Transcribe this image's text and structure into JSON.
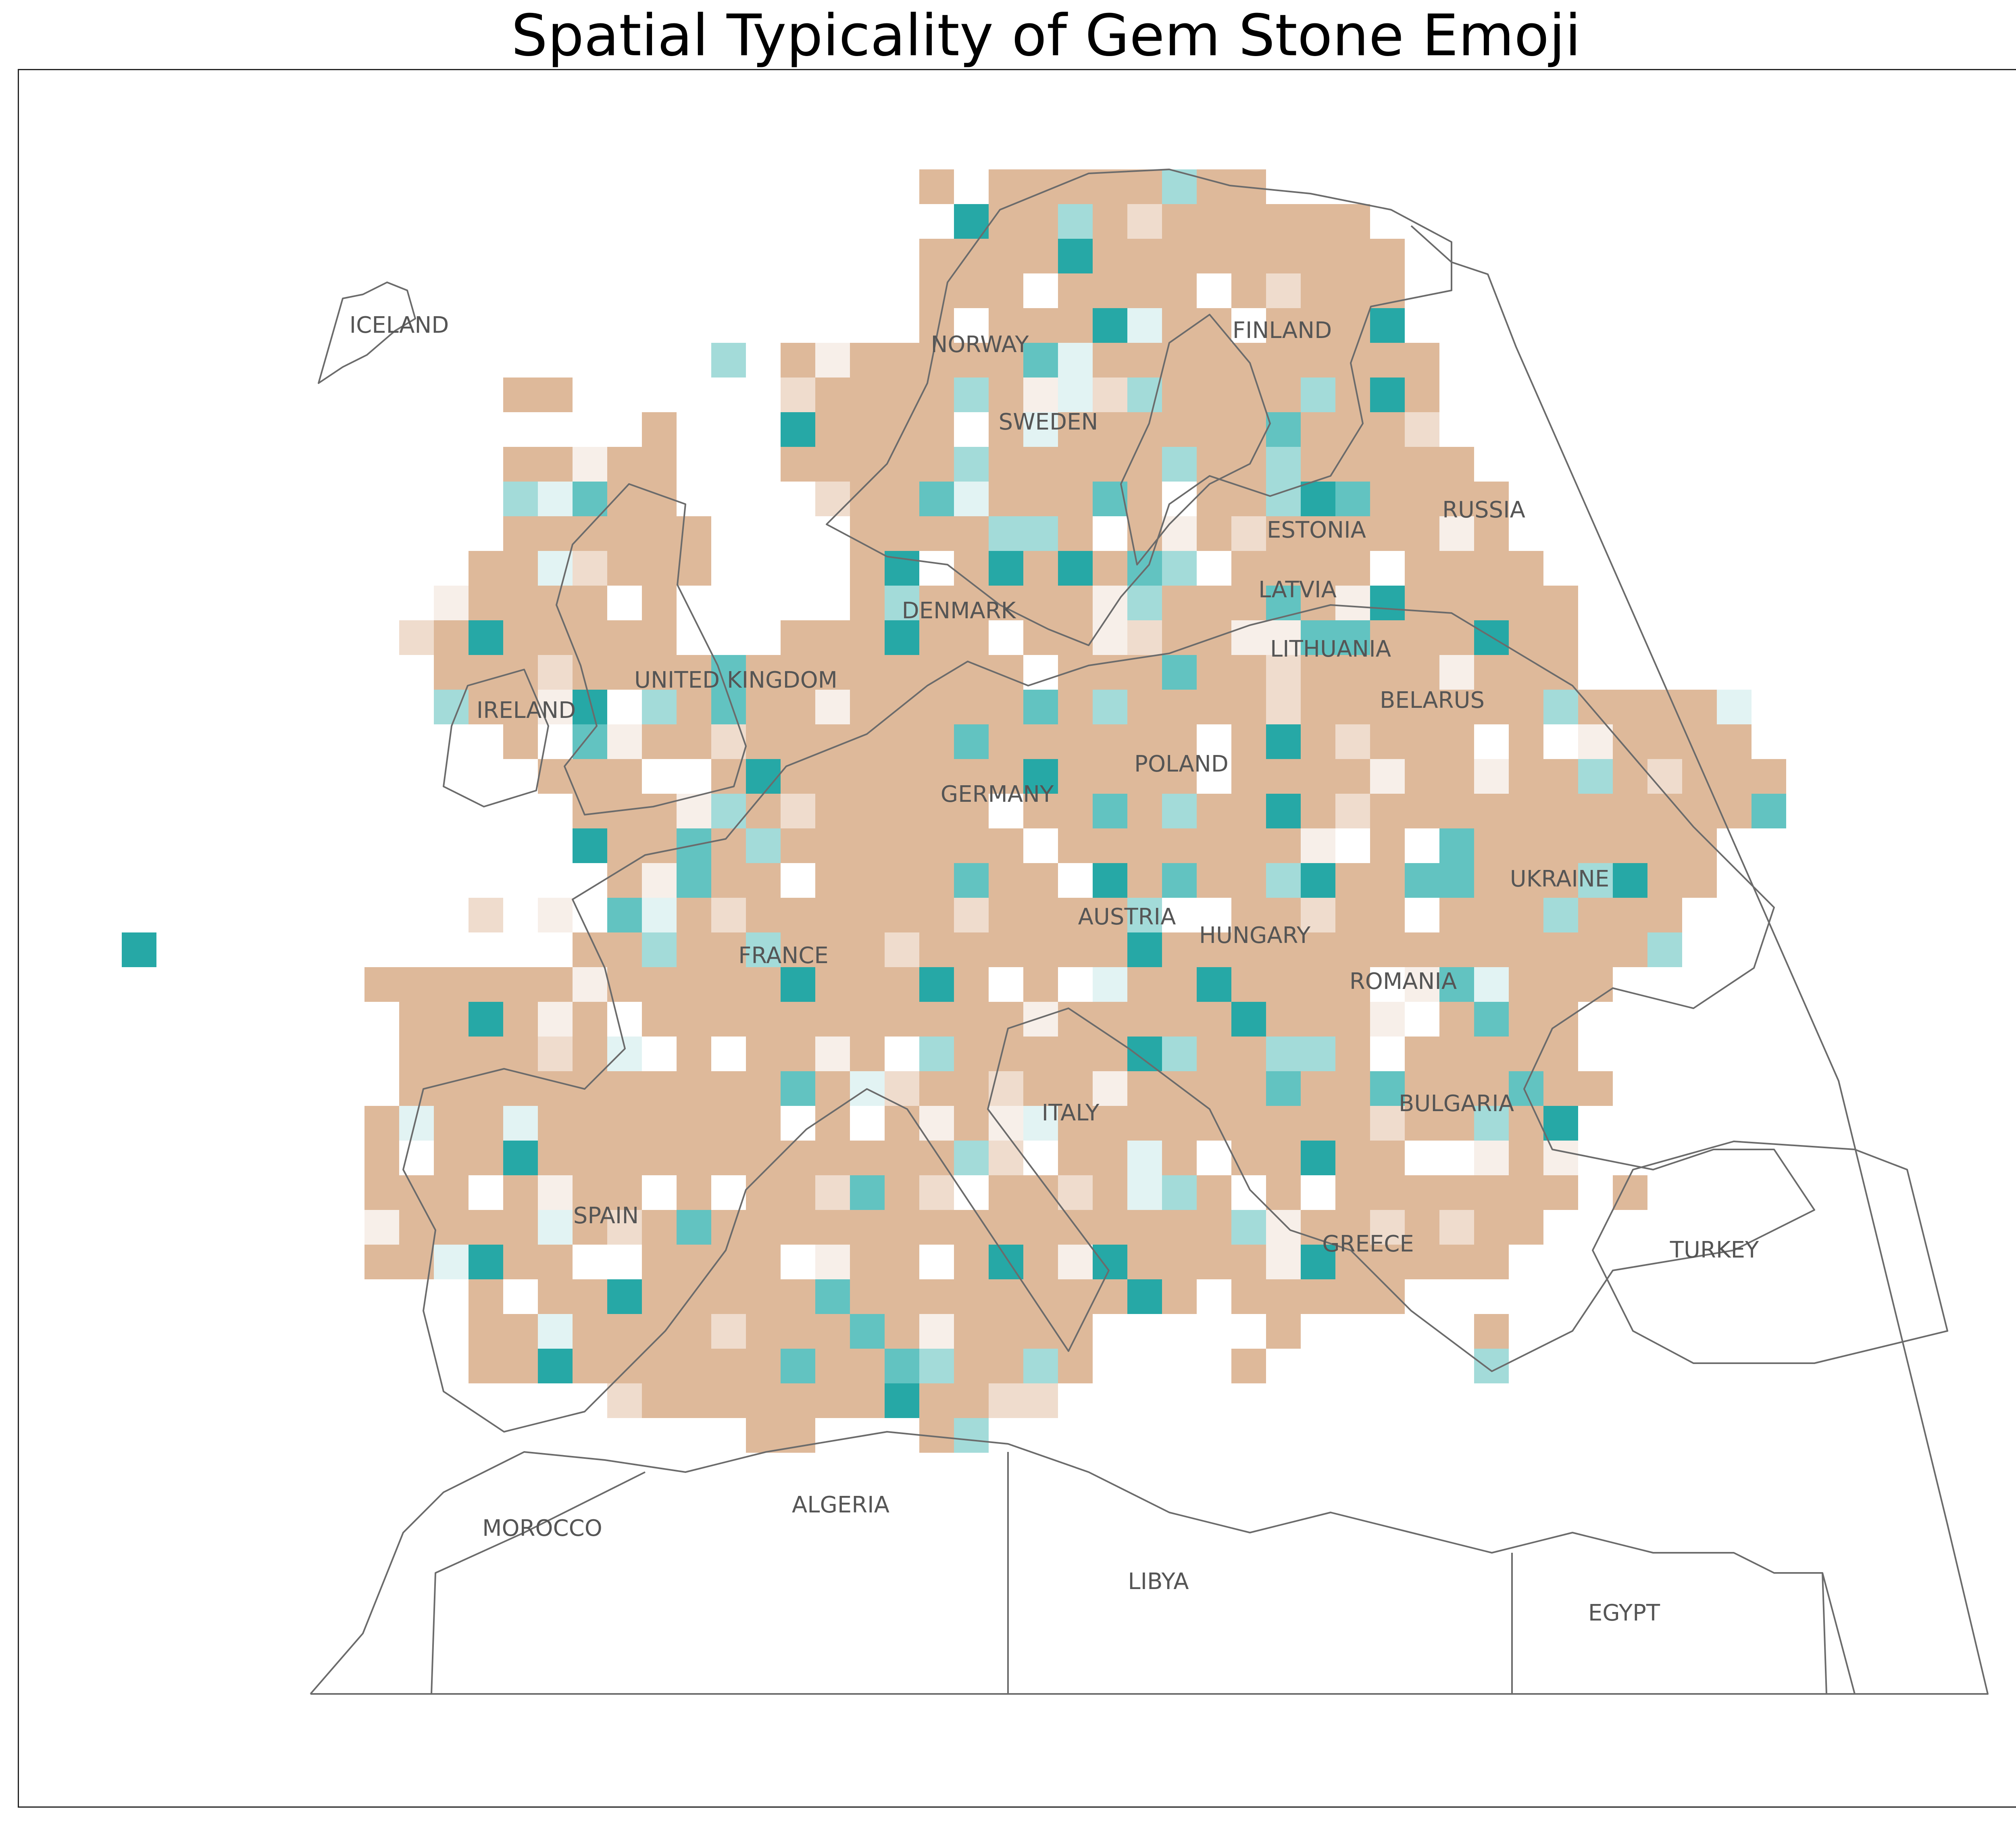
{
  "title": "Spatial Typicality of Gem Stone Emoji",
  "colors": {
    "land": "#deb99a",
    "very_light": "#f7efe9",
    "light": "#efdccd",
    "pale_teal": "#e2f3f3",
    "light_teal": "#a3dbd9",
    "mid_teal": "#62c3c1",
    "dark_teal": "#26a8a6",
    "outline": "#6b6b6b"
  },
  "countries": [
    {
      "name": "ICELAND"
    },
    {
      "name": "NORWAY"
    },
    {
      "name": "FINLAND"
    },
    {
      "name": "SWEDEN"
    },
    {
      "name": "RUSSIA"
    },
    {
      "name": "ESTONIA"
    },
    {
      "name": "LATVIA"
    },
    {
      "name": "DENMARK"
    },
    {
      "name": "LITHUANIA"
    },
    {
      "name": "UNITED KINGDOM"
    },
    {
      "name": "IRELAND"
    },
    {
      "name": "BELARUS"
    },
    {
      "name": "POLAND"
    },
    {
      "name": "GERMANY"
    },
    {
      "name": "UKRAINE"
    },
    {
      "name": "AUSTRIA"
    },
    {
      "name": "HUNGARY"
    },
    {
      "name": "FRANCE"
    },
    {
      "name": "ROMANIA"
    },
    {
      "name": "ITALY"
    },
    {
      "name": "BULGARIA"
    },
    {
      "name": "SPAIN"
    },
    {
      "name": "GREECE"
    },
    {
      "name": "TURKEY"
    },
    {
      "name": "MOROCCO"
    },
    {
      "name": "ALGERIA"
    },
    {
      "name": "LIBYA"
    },
    {
      "name": "EGYPT"
    }
  ]
}
